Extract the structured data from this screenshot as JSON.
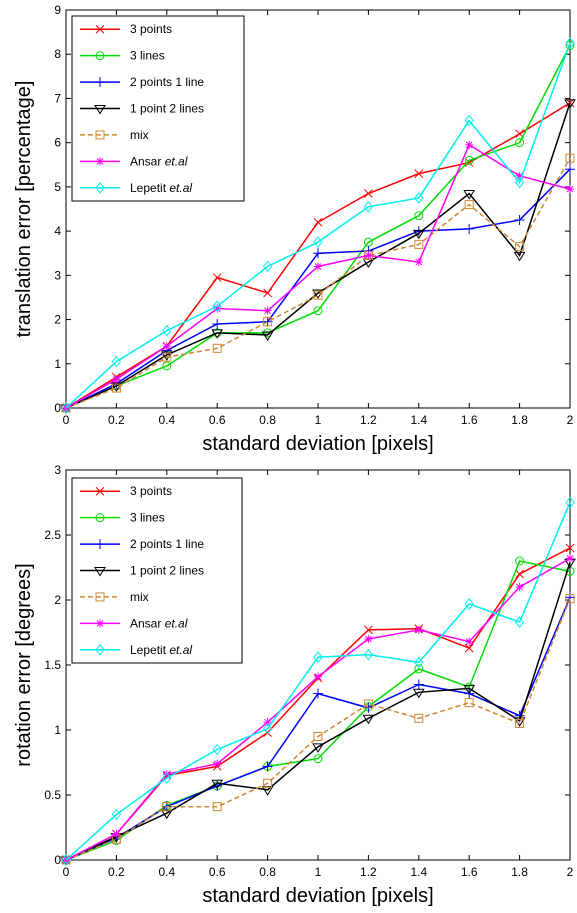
{
  "chart_data": [
    {
      "type": "line",
      "xlabel": "standard deviation [pixels]",
      "ylabel": "translation error [percentage]",
      "xlim": [
        0,
        2
      ],
      "ylim": [
        0,
        9
      ],
      "x_ticks": [
        "0",
        "0.2",
        "0.4",
        "0.6",
        "0.8",
        "1",
        "1.2",
        "1.4",
        "1.6",
        "1.8",
        "2"
      ],
      "y_ticks": [
        "0",
        "1",
        "2",
        "3",
        "4",
        "5",
        "6",
        "7",
        "8",
        "9"
      ],
      "grid": false,
      "legend_position": "top-left",
      "x": [
        0,
        0.2,
        0.4,
        0.6,
        0.8,
        1.0,
        1.2,
        1.4,
        1.6,
        1.8,
        2.0
      ],
      "series": [
        {
          "name": "3 points",
          "color": "#ff0000",
          "marker": "x",
          "dashed": false,
          "values": [
            0,
            0.7,
            1.4,
            2.95,
            2.6,
            4.2,
            4.85,
            5.3,
            5.55,
            6.2,
            6.9
          ]
        },
        {
          "name": "3 lines",
          "color": "#00dd00",
          "marker": "circle",
          "dashed": false,
          "values": [
            0,
            0.5,
            0.95,
            1.7,
            1.7,
            2.2,
            3.75,
            4.35,
            5.6,
            6.0,
            8.2
          ]
        },
        {
          "name": "2 points 1 line",
          "color": "#0000ff",
          "marker": "plus",
          "dashed": false,
          "values": [
            0,
            0.55,
            1.3,
            1.9,
            1.95,
            3.5,
            3.55,
            4.0,
            4.05,
            4.25,
            5.4
          ]
        },
        {
          "name": "1 point 2 lines",
          "color": "#000000",
          "marker": "triangle-down",
          "dashed": false,
          "values": [
            0,
            0.5,
            1.2,
            1.7,
            1.65,
            2.6,
            3.3,
            3.95,
            4.85,
            3.45,
            6.9
          ]
        },
        {
          "name": "mix",
          "color": "#cc8833",
          "marker": "square",
          "dashed": true,
          "values": [
            0,
            0.45,
            1.15,
            1.35,
            1.95,
            2.55,
            3.45,
            3.7,
            4.6,
            3.65,
            5.65
          ]
        },
        {
          "name": "Ansar",
          "name_suffix": "et.al",
          "color": "#ff00ff",
          "marker": "star",
          "dashed": false,
          "values": [
            0,
            0.65,
            1.4,
            2.25,
            2.2,
            3.2,
            3.45,
            3.3,
            5.95,
            5.25,
            4.95
          ]
        },
        {
          "name": "Lepetit",
          "name_suffix": "et.al",
          "color": "#00eeee",
          "marker": "diamond",
          "dashed": false,
          "values": [
            0,
            1.05,
            1.75,
            2.3,
            3.2,
            3.75,
            4.55,
            4.75,
            6.5,
            5.1,
            8.25
          ]
        }
      ]
    },
    {
      "type": "line",
      "xlabel": "standard deviation [pixels]",
      "ylabel": "rotation error [degrees]",
      "xlim": [
        0,
        2
      ],
      "ylim": [
        0,
        3
      ],
      "x_ticks": [
        "0",
        "0.2",
        "0.4",
        "0.6",
        "0.8",
        "1",
        "1.2",
        "1.4",
        "1.6",
        "1.8",
        "2"
      ],
      "y_ticks": [
        "0",
        "0.5",
        "1",
        "1.5",
        "2",
        "2.5",
        "3"
      ],
      "grid": false,
      "legend_position": "top-left",
      "x": [
        0,
        0.2,
        0.4,
        0.6,
        0.8,
        1.0,
        1.2,
        1.4,
        1.6,
        1.8,
        2.0
      ],
      "series": [
        {
          "name": "3 points",
          "color": "#ff0000",
          "marker": "x",
          "dashed": false,
          "values": [
            0,
            0.2,
            0.65,
            0.72,
            0.98,
            1.4,
            1.77,
            1.78,
            1.63,
            2.2,
            2.4
          ]
        },
        {
          "name": "3 lines",
          "color": "#00dd00",
          "marker": "circle",
          "dashed": false,
          "values": [
            0,
            0.15,
            0.42,
            0.57,
            0.72,
            0.78,
            1.18,
            1.47,
            1.33,
            2.3,
            2.22
          ]
        },
        {
          "name": "2 points 1 line",
          "color": "#0000ff",
          "marker": "plus",
          "dashed": false,
          "values": [
            0,
            0.17,
            0.41,
            0.57,
            0.72,
            1.28,
            1.17,
            1.35,
            1.28,
            1.11,
            2.02
          ]
        },
        {
          "name": "1 point 2 lines",
          "color": "#000000",
          "marker": "triangle-down",
          "dashed": false,
          "values": [
            0,
            0.18,
            0.36,
            0.59,
            0.54,
            0.87,
            1.09,
            1.29,
            1.32,
            1.07,
            2.29
          ]
        },
        {
          "name": "mix",
          "color": "#cc8833",
          "marker": "square",
          "dashed": true,
          "values": [
            0,
            0.16,
            0.41,
            0.41,
            0.59,
            0.95,
            1.2,
            1.09,
            1.21,
            1.05,
            2.01
          ]
        },
        {
          "name": "Ansar",
          "name_suffix": "et.al",
          "color": "#ff00ff",
          "marker": "star",
          "dashed": false,
          "values": [
            0,
            0.2,
            0.66,
            0.74,
            1.06,
            1.41,
            1.7,
            1.77,
            1.68,
            2.1,
            2.32
          ]
        },
        {
          "name": "Lepetit",
          "name_suffix": "et.al",
          "color": "#00eeee",
          "marker": "diamond",
          "dashed": false,
          "values": [
            0,
            0.35,
            0.63,
            0.85,
            1.01,
            1.56,
            1.58,
            1.52,
            1.97,
            1.83,
            2.75
          ]
        }
      ]
    }
  ]
}
